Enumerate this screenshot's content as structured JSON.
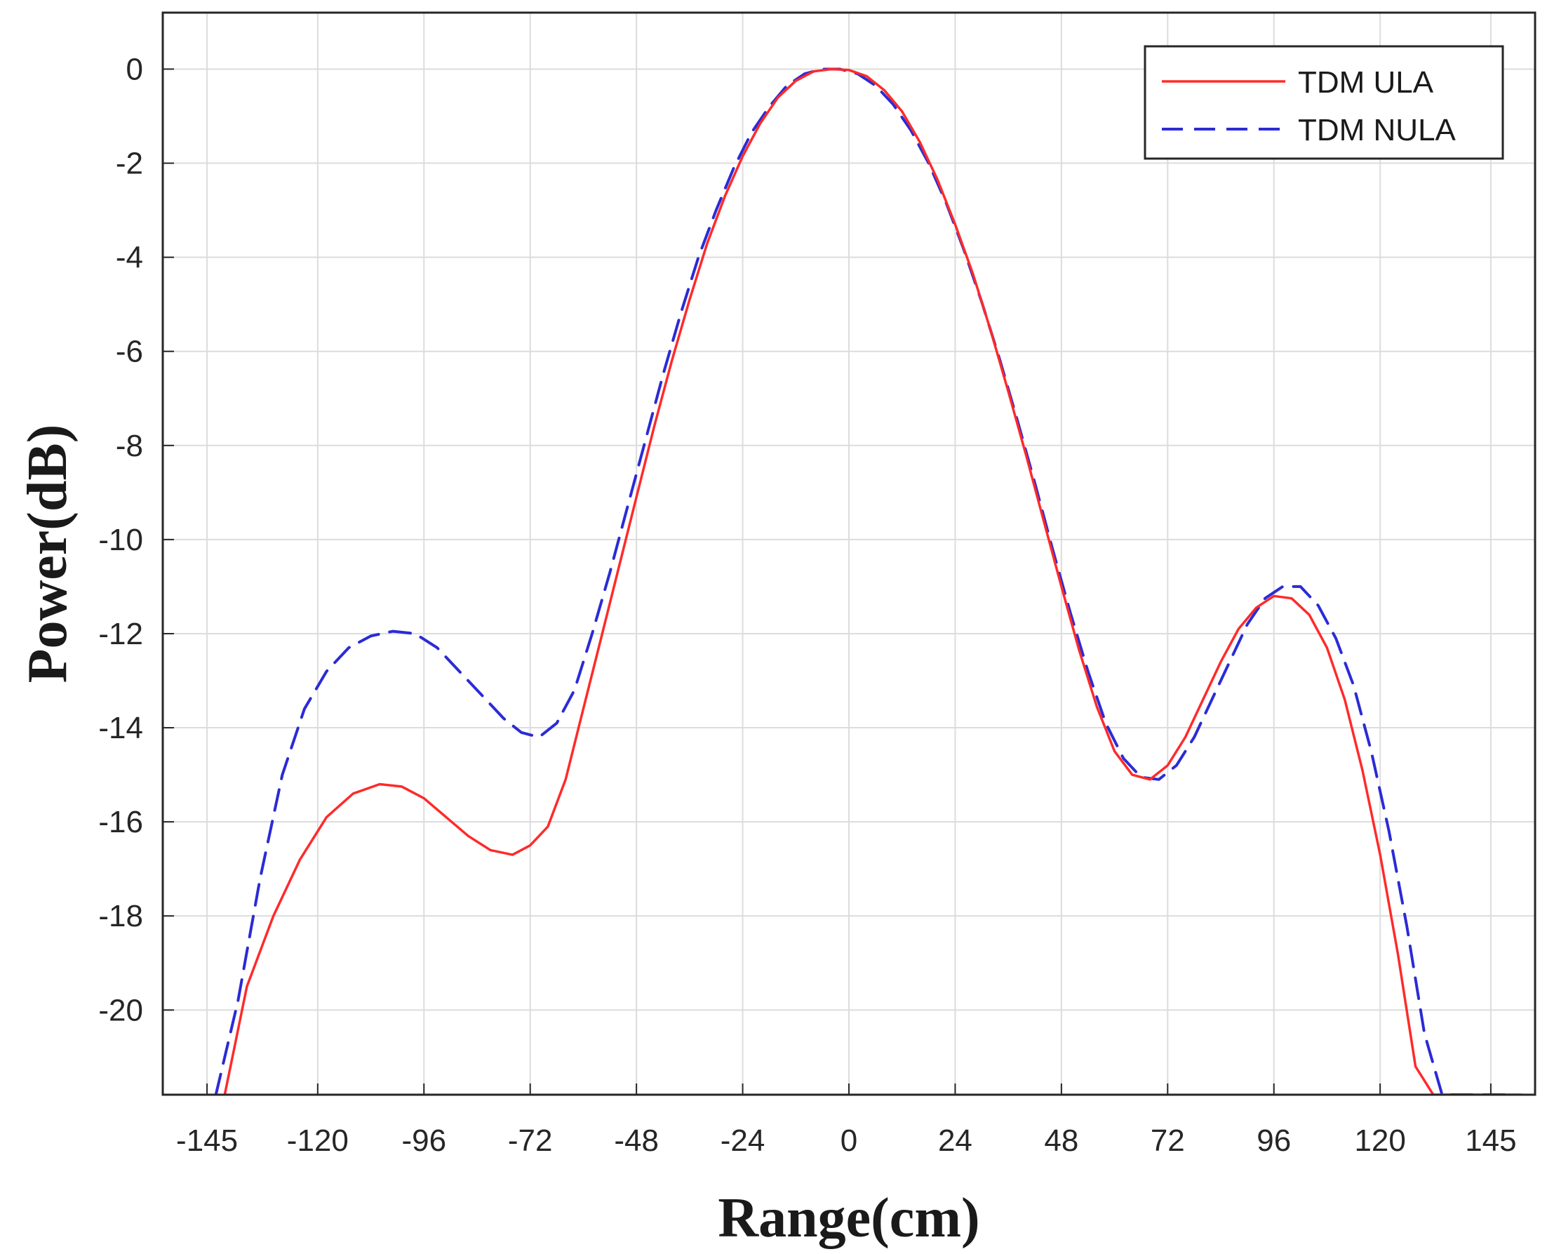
{
  "chart_data": {
    "type": "line",
    "title": "",
    "xlabel": "Range(cm)",
    "ylabel": "Power(dB)",
    "xlim": [
      -155,
      155
    ],
    "ylim": [
      -21.8,
      1.2
    ],
    "x_ticks": [
      -145,
      -120,
      -96,
      -72,
      -48,
      -24,
      0,
      24,
      48,
      72,
      96,
      120,
      145
    ],
    "x_tick_labels": [
      "-145",
      "-120",
      "-96",
      "-72",
      "-48",
      "-24",
      "0",
      "24",
      "48",
      "72",
      "96",
      "120",
      "145"
    ],
    "y_ticks": [
      0,
      -2,
      -4,
      -6,
      -8,
      -10,
      -12,
      -14,
      -16,
      -18,
      -20
    ],
    "y_tick_labels": [
      "0",
      "-2",
      "-4",
      "-6",
      "-8",
      "-10",
      "-12",
      "-14",
      "-16",
      "-18",
      "-20"
    ],
    "grid": true,
    "legend": {
      "position": "top-right"
    },
    "series": [
      {
        "name": "TDM ULA",
        "color": "#ff2a2a",
        "dash": "solid",
        "x": [
          -141,
          -136,
          -130,
          -124,
          -118,
          -112,
          -106,
          -101,
          -96,
          -91,
          -86,
          -81,
          -76,
          -72,
          -68,
          -64,
          -60,
          -56,
          -52,
          -48,
          -44,
          -40,
          -36,
          -32,
          -28,
          -24,
          -20,
          -16,
          -12,
          -8,
          -4,
          0,
          4,
          8,
          12,
          16,
          20,
          24,
          28,
          32,
          36,
          40,
          44,
          48,
          52,
          56,
          60,
          64,
          68,
          72,
          76,
          80,
          84,
          88,
          92,
          96,
          100,
          104,
          108,
          112,
          116,
          120,
          124,
          128,
          132,
          136,
          140,
          144,
          148,
          152
        ],
        "y": [
          -21.8,
          -19.5,
          -18.0,
          -16.8,
          -15.9,
          -15.4,
          -15.2,
          -15.25,
          -15.5,
          -15.9,
          -16.3,
          -16.6,
          -16.7,
          -16.5,
          -16.1,
          -15.1,
          -13.6,
          -12.1,
          -10.6,
          -9.1,
          -7.6,
          -6.2,
          -4.9,
          -3.7,
          -2.7,
          -1.85,
          -1.15,
          -0.6,
          -0.25,
          -0.05,
          0.0,
          -0.02,
          -0.15,
          -0.45,
          -0.9,
          -1.55,
          -2.35,
          -3.3,
          -4.35,
          -5.55,
          -6.85,
          -8.2,
          -9.6,
          -11.0,
          -12.35,
          -13.55,
          -14.5,
          -15.0,
          -15.1,
          -14.8,
          -14.2,
          -13.4,
          -12.6,
          -11.9,
          -11.45,
          -11.2,
          -11.25,
          -11.6,
          -12.3,
          -13.4,
          -14.9,
          -16.7,
          -18.8,
          -21.2,
          -21.8,
          -21.8,
          -21.8,
          -21.8,
          -21.8,
          -21.8
        ],
        "_note_unused": ""
      },
      {
        "name": "TDM NULA",
        "color": "#2b2bd6",
        "dash": "dashed",
        "x": [
          -143,
          -138,
          -133,
          -128,
          -123,
          -118,
          -113,
          -108,
          -103,
          -98,
          -93,
          -88,
          -83,
          -78,
          -74,
          -70,
          -66,
          -62,
          -58,
          -54,
          -50,
          -46,
          -42,
          -38,
          -34,
          -30,
          -26,
          -22,
          -18,
          -14,
          -10,
          -6,
          -2,
          2,
          6,
          10,
          14,
          18,
          22,
          26,
          30,
          34,
          38,
          42,
          46,
          50,
          54,
          58,
          62,
          66,
          70,
          74,
          78,
          82,
          86,
          90,
          94,
          98,
          102,
          106,
          110,
          114,
          118,
          122,
          126,
          130,
          134,
          138,
          142,
          146,
          150
        ],
        "y": [
          -21.8,
          -19.8,
          -17.2,
          -15.0,
          -13.6,
          -12.8,
          -12.3,
          -12.05,
          -11.95,
          -12.0,
          -12.3,
          -12.8,
          -13.3,
          -13.8,
          -14.1,
          -14.2,
          -13.9,
          -13.2,
          -12.0,
          -10.7,
          -9.3,
          -7.9,
          -6.5,
          -5.2,
          -4.0,
          -3.0,
          -2.1,
          -1.35,
          -0.8,
          -0.35,
          -0.1,
          0.0,
          0.0,
          -0.1,
          -0.35,
          -0.75,
          -1.3,
          -2.0,
          -2.85,
          -3.85,
          -4.95,
          -6.15,
          -7.45,
          -8.8,
          -10.2,
          -11.55,
          -12.8,
          -13.9,
          -14.65,
          -15.05,
          -15.1,
          -14.8,
          -14.2,
          -13.4,
          -12.6,
          -11.8,
          -11.25,
          -11.0,
          -11.0,
          -11.4,
          -12.1,
          -13.1,
          -14.5,
          -16.2,
          -18.2,
          -20.5,
          -21.8,
          -21.8,
          -21.8,
          -21.8,
          -21.8
        ]
      }
    ]
  }
}
